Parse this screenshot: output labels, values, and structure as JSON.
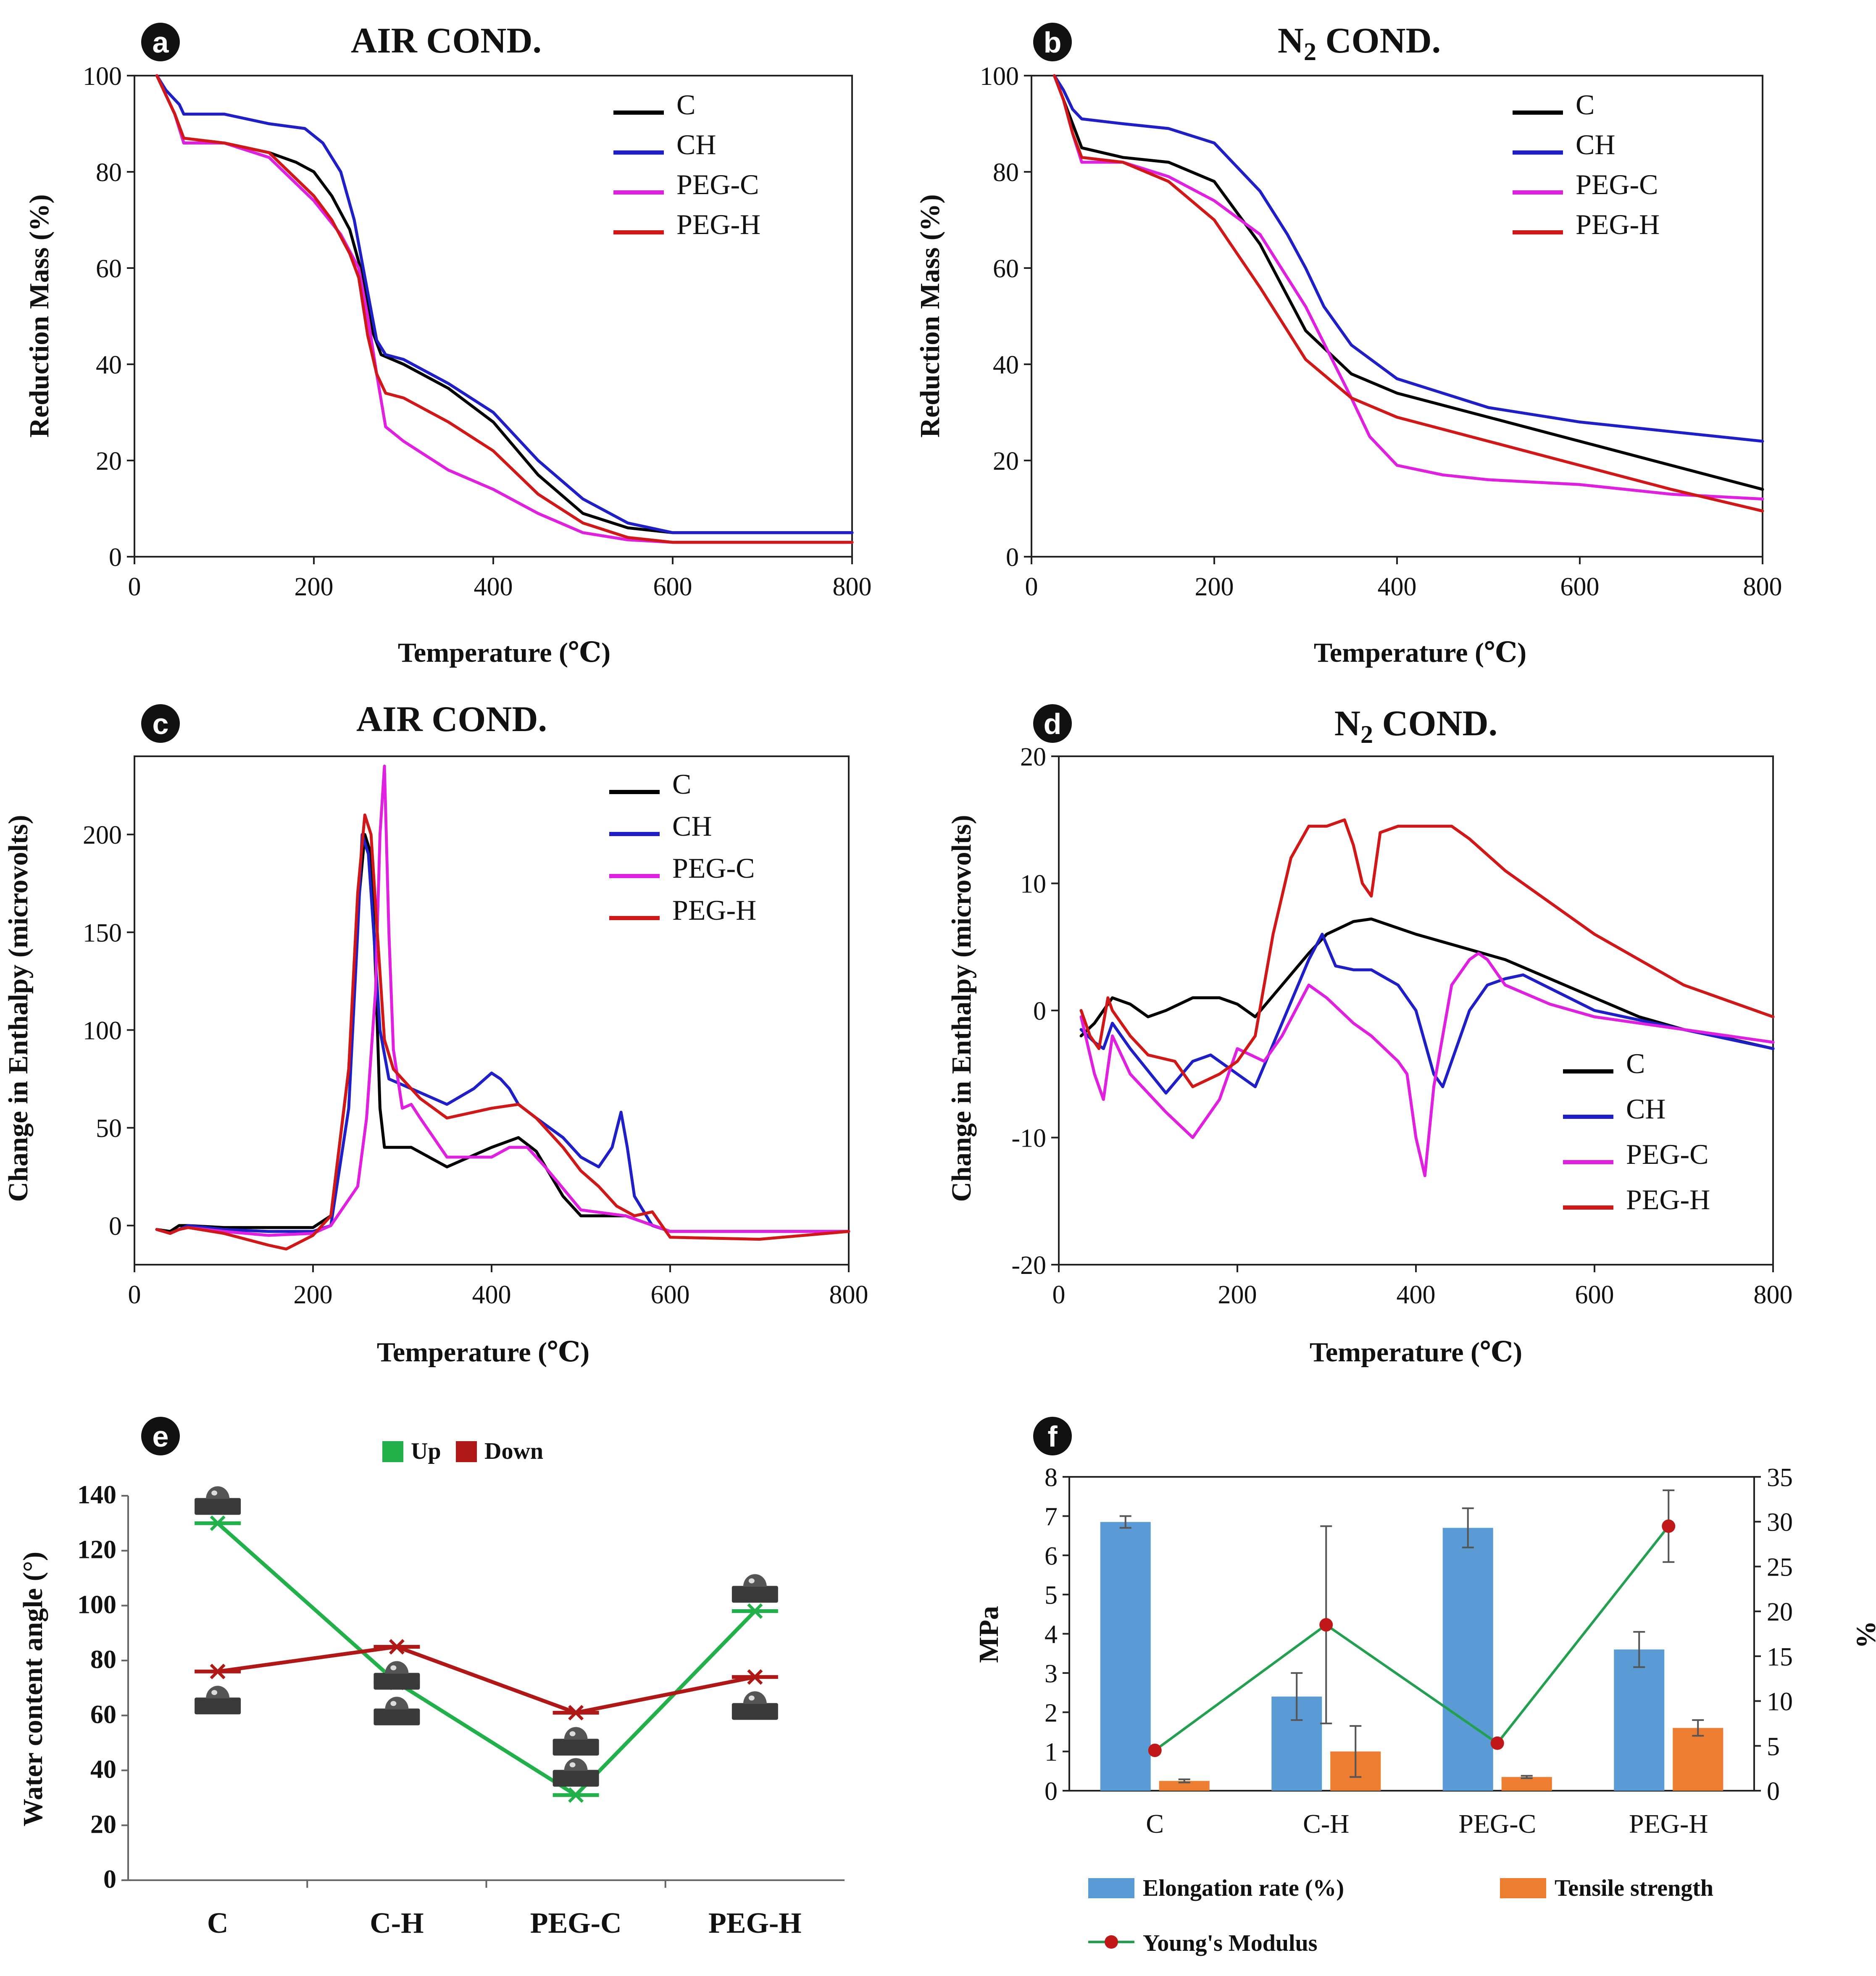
{
  "chart_data": [
    {
      "panel": "a",
      "type": "line",
      "title": "AIR COND.",
      "xlabel": "Temperature (℃)",
      "ylabel": "Reduction Mass (%)",
      "xlim": [
        0,
        800
      ],
      "ylim": [
        0,
        100
      ],
      "xticks": [
        0,
        200,
        400,
        600,
        800
      ],
      "yticks": [
        0,
        20,
        40,
        60,
        80,
        100
      ],
      "legend_position": "top-right",
      "series": [
        {
          "name": "C",
          "color": "#000000",
          "x": [
            25,
            35,
            45,
            55,
            100,
            150,
            180,
            200,
            220,
            240,
            255,
            265,
            275,
            300,
            350,
            400,
            450,
            500,
            550,
            600,
            700,
            800
          ],
          "y": [
            100,
            96,
            92,
            86,
            86,
            84,
            82,
            80,
            75,
            68,
            58,
            47,
            42,
            40,
            35,
            28,
            17,
            9,
            6,
            5,
            5,
            5
          ]
        },
        {
          "name": "CH",
          "color": "#1f1fc8",
          "x": [
            25,
            35,
            45,
            50,
            55,
            100,
            150,
            190,
            210,
            230,
            245,
            260,
            270,
            280,
            300,
            350,
            400,
            450,
            500,
            550,
            600,
            700,
            800
          ],
          "y": [
            100,
            97,
            95,
            94,
            92,
            92,
            90,
            89,
            86,
            80,
            70,
            55,
            45,
            42,
            41,
            36,
            30,
            20,
            12,
            7,
            5,
            5,
            5
          ]
        },
        {
          "name": "PEG-C",
          "color": "#e020e0",
          "x": [
            25,
            35,
            45,
            55,
            100,
            150,
            200,
            230,
            250,
            260,
            270,
            280,
            300,
            350,
            400,
            450,
            500,
            550,
            600,
            700,
            800
          ],
          "y": [
            100,
            96,
            92,
            86,
            86,
            83,
            74,
            67,
            60,
            50,
            38,
            27,
            24,
            18,
            14,
            9,
            5,
            3.5,
            3,
            3,
            3
          ]
        },
        {
          "name": "PEG-H",
          "color": "#d01818",
          "x": [
            25,
            35,
            45,
            55,
            100,
            150,
            200,
            220,
            240,
            250,
            260,
            270,
            280,
            300,
            350,
            400,
            450,
            500,
            550,
            600,
            700,
            800
          ],
          "y": [
            100,
            96,
            92,
            87,
            86,
            84,
            75,
            70,
            63,
            58,
            46,
            38,
            34,
            33,
            28,
            22,
            13,
            7,
            4,
            3,
            3,
            3
          ]
        }
      ]
    },
    {
      "panel": "b",
      "type": "line",
      "title": "N₂ COND.",
      "xlabel": "Temperature (℃)",
      "ylabel": "Reduction Mass (%)",
      "xlim": [
        0,
        800
      ],
      "ylim": [
        0,
        100
      ],
      "xticks": [
        0,
        200,
        400,
        600,
        800
      ],
      "yticks": [
        0,
        20,
        40,
        60,
        80,
        100
      ],
      "legend_position": "top-right",
      "series": [
        {
          "name": "C",
          "color": "#000000",
          "x": [
            25,
            35,
            45,
            55,
            100,
            150,
            200,
            250,
            300,
            350,
            400,
            500,
            600,
            700,
            800
          ],
          "y": [
            100,
            95,
            90,
            85,
            83,
            82,
            78,
            65,
            47,
            38,
            34,
            29,
            24,
            19,
            14
          ]
        },
        {
          "name": "CH",
          "color": "#1f1fc8",
          "x": [
            25,
            35,
            45,
            55,
            100,
            150,
            200,
            250,
            280,
            300,
            320,
            350,
            400,
            500,
            600,
            700,
            800
          ],
          "y": [
            100,
            97,
            93,
            91,
            90,
            89,
            86,
            76,
            67,
            60,
            52,
            44,
            37,
            31,
            28,
            26,
            24
          ]
        },
        {
          "name": "PEG-C",
          "color": "#e020e0",
          "x": [
            25,
            35,
            45,
            55,
            100,
            150,
            200,
            250,
            300,
            350,
            370,
            400,
            450,
            500,
            600,
            700,
            800
          ],
          "y": [
            100,
            95,
            88,
            82,
            82,
            79,
            74,
            67,
            52,
            33,
            25,
            19,
            17,
            16,
            15,
            13,
            12
          ]
        },
        {
          "name": "PEG-H",
          "color": "#d01818",
          "x": [
            25,
            35,
            45,
            55,
            100,
            150,
            200,
            250,
            300,
            350,
            400,
            500,
            600,
            700,
            800
          ],
          "y": [
            100,
            95,
            88,
            83,
            82,
            78,
            70,
            56,
            41,
            33,
            29,
            24,
            19,
            14,
            9.5
          ]
        }
      ]
    },
    {
      "panel": "c",
      "type": "line",
      "title": "AIR COND.",
      "xlabel": "Temperature (℃)",
      "ylabel": "Change in Enthalpy (microvolts)",
      "xlim": [
        0,
        800
      ],
      "ylim": [
        -20,
        240
      ],
      "xticks": [
        0,
        200,
        400,
        600,
        800
      ],
      "yticks": [
        0,
        50,
        100,
        150,
        200
      ],
      "legend_position": "top-right",
      "series": [
        {
          "name": "C",
          "color": "#000000",
          "x": [
            25,
            40,
            50,
            60,
            100,
            150,
            200,
            220,
            240,
            250,
            258,
            265,
            270,
            275,
            280,
            290,
            310,
            350,
            400,
            430,
            450,
            480,
            500,
            550,
            600,
            700,
            800
          ],
          "y": [
            -2,
            -3,
            0,
            0,
            -1,
            -1,
            -1,
            5,
            80,
            160,
            200,
            190,
            130,
            60,
            40,
            40,
            40,
            30,
            40,
            45,
            38,
            15,
            5,
            5,
            -3,
            -3,
            -3
          ]
        },
        {
          "name": "CH",
          "color": "#1f1fc8",
          "x": [
            25,
            40,
            50,
            60,
            100,
            150,
            200,
            220,
            240,
            250,
            255,
            262,
            268,
            275,
            285,
            300,
            350,
            380,
            400,
            410,
            420,
            430,
            450,
            480,
            500,
            520,
            535,
            545,
            552,
            560,
            580,
            600,
            700,
            800
          ],
          "y": [
            -2,
            -4,
            -2,
            0,
            -2,
            -3,
            -3,
            0,
            60,
            150,
            200,
            190,
            150,
            100,
            75,
            72,
            62,
            70,
            78,
            75,
            70,
            62,
            55,
            45,
            35,
            30,
            40,
            58,
            40,
            15,
            0,
            -3,
            -3,
            -3
          ]
        },
        {
          "name": "PEG-C",
          "color": "#e020e0",
          "x": [
            25,
            40,
            50,
            60,
            100,
            150,
            200,
            220,
            250,
            260,
            270,
            275,
            280,
            285,
            290,
            300,
            310,
            320,
            350,
            400,
            420,
            440,
            460,
            500,
            550,
            600,
            700,
            800
          ],
          "y": [
            -2,
            -4,
            -2,
            -1,
            -3,
            -5,
            -4,
            0,
            20,
            55,
            120,
            200,
            235,
            150,
            90,
            60,
            62,
            55,
            35,
            35,
            40,
            40,
            30,
            8,
            5,
            -3,
            -3,
            -3
          ]
        },
        {
          "name": "PEG-H",
          "color": "#d01818",
          "x": [
            25,
            40,
            50,
            60,
            100,
            150,
            170,
            200,
            220,
            240,
            250,
            258,
            265,
            272,
            280,
            290,
            300,
            320,
            350,
            400,
            430,
            450,
            480,
            500,
            520,
            540,
            560,
            580,
            600,
            700,
            800
          ],
          "y": [
            -2,
            -4,
            -2,
            -1,
            -4,
            -10,
            -12,
            -5,
            5,
            80,
            170,
            210,
            200,
            150,
            95,
            80,
            75,
            65,
            55,
            60,
            62,
            55,
            40,
            28,
            20,
            10,
            5,
            7,
            -6,
            -7,
            -3
          ]
        }
      ]
    },
    {
      "panel": "d",
      "type": "line",
      "title": "N₂ COND.",
      "xlabel": "Temperature (℃)",
      "ylabel": "Change in Enthalpy (microvolts)",
      "xlim": [
        0,
        800
      ],
      "ylim": [
        -20,
        20
      ],
      "xticks": [
        0,
        200,
        400,
        600,
        800
      ],
      "yticks": [
        -20,
        -10,
        0,
        10,
        20
      ],
      "legend_position": "bottom-right",
      "series": [
        {
          "name": "C",
          "color": "#000000",
          "x": [
            25,
            40,
            60,
            80,
            100,
            120,
            150,
            180,
            200,
            220,
            250,
            280,
            300,
            330,
            350,
            400,
            450,
            500,
            550,
            600,
            650,
            700,
            750,
            800
          ],
          "y": [
            -2,
            -1,
            1,
            0.5,
            -0.5,
            0,
            1,
            1,
            0.5,
            -0.5,
            2,
            4.5,
            6,
            7,
            7.2,
            6,
            5,
            4,
            2.5,
            1,
            -0.5,
            -1.5,
            -2.2,
            -3
          ]
        },
        {
          "name": "CH",
          "color": "#1f1fc8",
          "x": [
            25,
            40,
            50,
            60,
            80,
            120,
            150,
            170,
            200,
            220,
            250,
            280,
            295,
            310,
            330,
            350,
            380,
            400,
            420,
            430,
            440,
            460,
            480,
            500,
            520,
            600,
            700,
            800
          ],
          "y": [
            -1.5,
            -2.5,
            -3,
            -1,
            -3,
            -6.5,
            -4,
            -3.5,
            -5,
            -6,
            -1,
            4,
            6,
            3.5,
            3.2,
            3.2,
            2,
            0,
            -5,
            -6,
            -4,
            0,
            2,
            2.5,
            2.8,
            0,
            -1.5,
            -3
          ]
        },
        {
          "name": "PEG-C",
          "color": "#e020e0",
          "x": [
            25,
            40,
            50,
            60,
            80,
            120,
            150,
            180,
            200,
            230,
            250,
            280,
            300,
            330,
            350,
            380,
            390,
            400,
            410,
            420,
            440,
            460,
            470,
            480,
            500,
            550,
            600,
            700,
            800
          ],
          "y": [
            -0.5,
            -5,
            -7,
            -2,
            -5,
            -8,
            -10,
            -7,
            -3,
            -4,
            -2,
            2,
            1,
            -1,
            -2,
            -4,
            -5,
            -10,
            -13,
            -6,
            2,
            4,
            4.5,
            4,
            2,
            0.5,
            -0.5,
            -1.5,
            -2.5
          ]
        },
        {
          "name": "PEG-H",
          "color": "#d01818",
          "x": [
            25,
            35,
            45,
            55,
            60,
            80,
            100,
            130,
            150,
            180,
            200,
            220,
            240,
            260,
            280,
            300,
            320,
            330,
            340,
            350,
            360,
            380,
            400,
            420,
            440,
            460,
            500,
            600,
            700,
            800
          ],
          "y": [
            0,
            -2,
            -3,
            1,
            0,
            -2,
            -3.5,
            -4,
            -6,
            -5,
            -4,
            -2,
            6,
            12,
            14.5,
            14.5,
            15,
            13,
            10,
            9,
            14,
            14.5,
            14.5,
            14.5,
            14.5,
            13.5,
            11,
            6,
            2,
            -0.5
          ]
        }
      ]
    },
    {
      "panel": "e",
      "type": "line",
      "categories": [
        "C",
        "C-H",
        "PEG-C",
        "PEG-H"
      ],
      "xlabel": "",
      "ylabel": "Water content angle (°)",
      "ylim": [
        0,
        140
      ],
      "yticks": [
        0,
        20,
        40,
        60,
        80,
        100,
        120,
        140
      ],
      "legend_position": "top",
      "series": [
        {
          "name": "Up",
          "color": "#22b04a",
          "values": [
            130,
            72,
            31,
            98
          ]
        },
        {
          "name": "Down",
          "color": "#b01818",
          "values": [
            76,
            85,
            61,
            74
          ]
        }
      ]
    },
    {
      "panel": "f",
      "type": "bar",
      "categories": [
        "C",
        "C-H",
        "PEG-C",
        "PEG-H"
      ],
      "ylabel": "MPa",
      "y2label": "%",
      "ylim": [
        0,
        8
      ],
      "y2lim": [
        0,
        35
      ],
      "yticks": [
        0,
        1,
        2,
        3,
        4,
        5,
        6,
        7,
        8
      ],
      "y2ticks": [
        0,
        5,
        10,
        15,
        20,
        25,
        30,
        35
      ],
      "legend_position": "bottom",
      "series": [
        {
          "name": "Elongation rate (%)",
          "color": "#5b9bd5",
          "axis": "left",
          "values": [
            6.85,
            2.4,
            6.7,
            3.6
          ],
          "errors": [
            0.15,
            0.6,
            0.5,
            0.45
          ]
        },
        {
          "name": "Tensile strength",
          "color": "#ed7d31",
          "axis": "left",
          "values": [
            0.25,
            1.0,
            0.35,
            1.6
          ],
          "errors": [
            0.04,
            0.65,
            0.03,
            0.2
          ]
        },
        {
          "name": "Young's Modulus",
          "color": "#22a050",
          "marker_color": "#c01818",
          "axis": "right",
          "values": [
            4.5,
            18.5,
            5.3,
            29.5
          ],
          "errors": [
            0,
            11,
            0,
            4
          ]
        }
      ]
    }
  ],
  "panel_labels": [
    "a",
    "b",
    "c",
    "d",
    "e",
    "f"
  ],
  "panel_titles": {
    "a": "AIR COND.",
    "c": "AIR COND.",
    "b_main": "N",
    "b_sub": "2",
    "b_rest": " COND.",
    "d_main": "N",
    "d_sub": "2",
    "d_rest": " COND."
  },
  "colors": {
    "C": "#000000",
    "CH": "#1f1fc8",
    "PEG-C": "#e020e0",
    "PEG-H": "#d01818",
    "Up": "#22b04a",
    "Down": "#b01818"
  }
}
